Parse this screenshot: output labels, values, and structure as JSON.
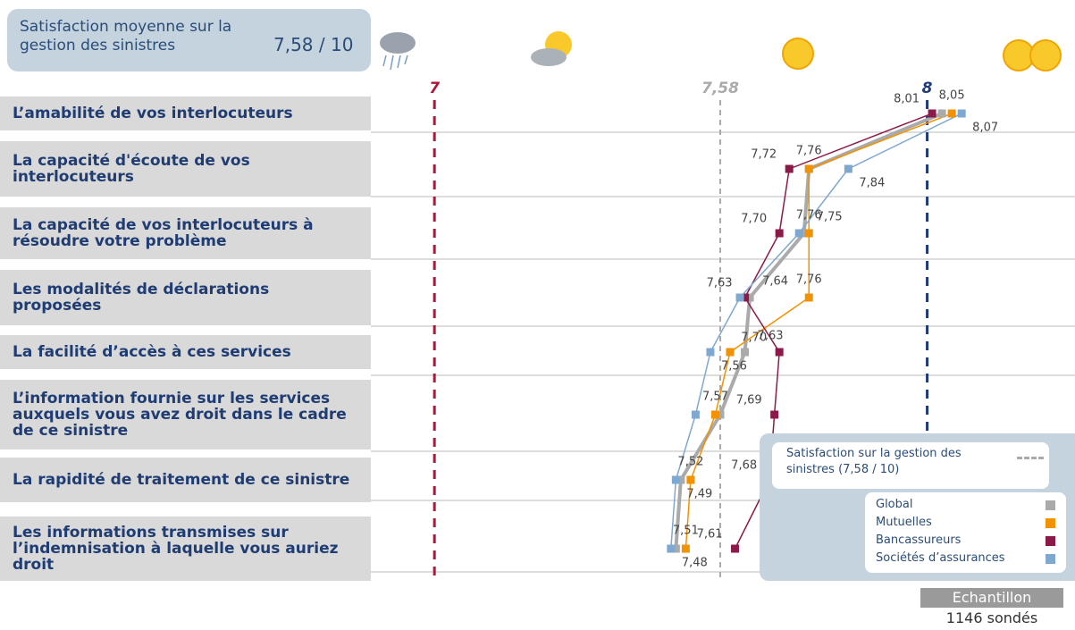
{
  "header": {
    "title": "Satisfaction moyenne sur la gestion des sinistres",
    "value": "7,58 / 10"
  },
  "chart_data": {
    "type": "dot-line",
    "categories": [
      "L’amabilité de vos interlocuteurs",
      "La capacité d'écoute de vos interlocuteurs",
      "La capacité de vos interlocuteurs à résoudre votre problème",
      "Les modalités de déclarations proposées",
      "La facilité d’accès à ces services",
      "L’information fournie sur les services auxquels vous avez droit dans le cadre de ce sinistre",
      "La rapidité de traitement de ce sinistre",
      "Les informations transmises sur l’indemnisation à laquelle vous auriez droit"
    ],
    "xlim": [
      6.88,
      8.3
    ],
    "reference_lines": [
      {
        "value": 7,
        "label": "7",
        "color": "#b0163a"
      },
      {
        "value": 7.58,
        "label": "7,58",
        "color": "#aaaaaa"
      },
      {
        "value": 8,
        "label": "8",
        "color": "#1e3a78"
      }
    ],
    "series": [
      {
        "name": "Global",
        "color": "#aaaaaa",
        "values": [
          8.03,
          7.76,
          7.75,
          7.64,
          7.63,
          7.58,
          7.5,
          7.49
        ],
        "value_labels": [
          null,
          null,
          "7,75",
          "7,64",
          "7,63",
          null,
          null,
          null
        ]
      },
      {
        "name": "Mutuelles",
        "color": "#f39200",
        "values": [
          8.05,
          7.76,
          7.76,
          7.76,
          7.6,
          7.57,
          7.52,
          7.51
        ],
        "value_labels": [
          "8,05",
          "7,76",
          "7,76",
          "7,76",
          null,
          "7,57",
          "7,52",
          "7,51"
        ]
      },
      {
        "name": "Bancassureurs",
        "color": "#8b1a4a",
        "values": [
          8.01,
          7.72,
          7.7,
          7.63,
          7.7,
          7.69,
          7.68,
          7.61
        ],
        "value_labels": [
          "8,01",
          "7,72",
          "7,70",
          "7,63",
          "7,70",
          "7,69",
          "7,68",
          "7,61"
        ]
      },
      {
        "name": "Sociétés d’assurances",
        "color": "#7fa8d1",
        "values": [
          8.07,
          7.84,
          7.74,
          7.62,
          7.56,
          7.53,
          7.49,
          7.48
        ],
        "value_labels": [
          "8,07",
          "7,84",
          null,
          null,
          "7,56",
          null,
          "7,49",
          "7,48"
        ]
      }
    ],
    "legend_title": "Satisfaction sur la gestion des sinistres  (7,58 / 10)"
  },
  "sample": {
    "title": "Echantillon",
    "value": "1146 sondés"
  }
}
